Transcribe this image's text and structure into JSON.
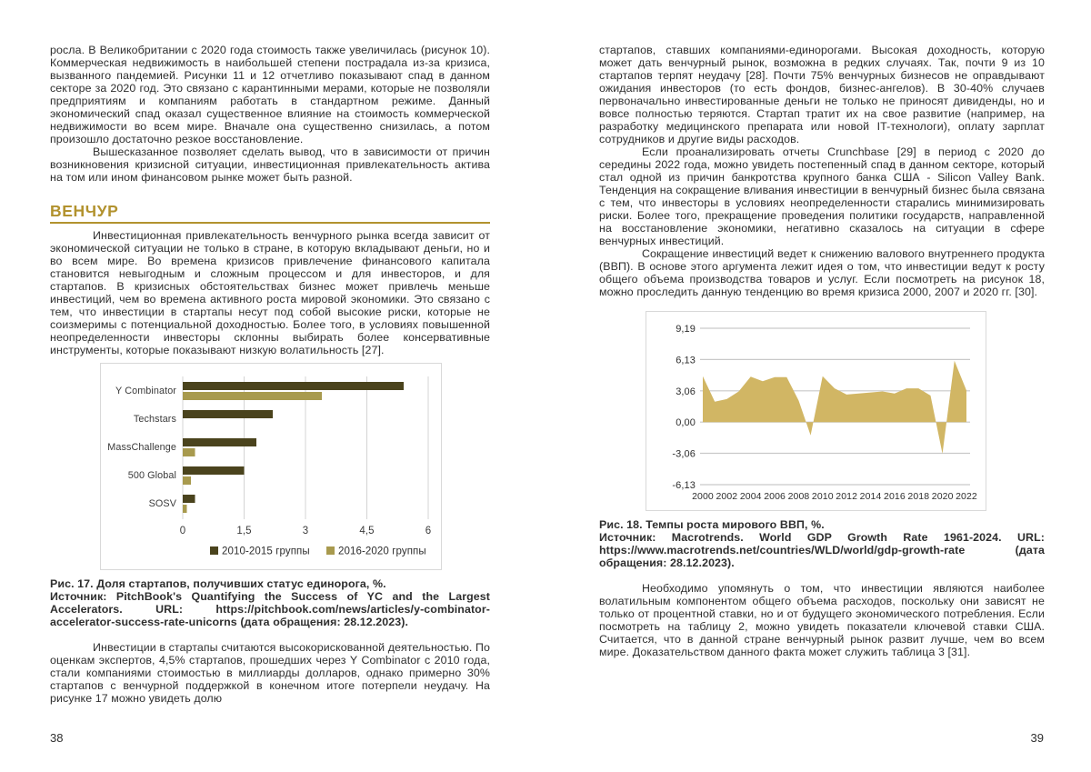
{
  "colors": {
    "heading_gold": "#b2922e",
    "bar_dark": "#4a431d",
    "bar_light": "#a89a4e",
    "area_fill": "#d1b664",
    "gridline": "#d4d4d4",
    "chart_border": "#d9d9d9",
    "body_text": "#2e2e2e"
  },
  "left_page": {
    "page_number": "38",
    "p1": "росла. В Великобритании с 2020 года стоимость также увеличилась (рисунок 10). Коммерческая недвижимость в наибольшей степени пострадала из-за кризиса, вызванного пандемией. Рисунки 11 и 12 отчетливо показывают спад в данном секторе за 2020 год. Это связано с карантинными мерами, которые не позволяли предприятиям и компаниям работать в стандартном режиме. Данный экономический спад оказал существенное влияние на стоимость коммерческой недвижимости во всем мире. Вначале она существенно снизилась, а потом произошло достаточно резкое восстановление.",
    "p2": "Вышесказанное позволяет сделать вывод, что в зависимости от причин возникновения кризисной ситуации, инвестиционная привлекательность актива на том или ином финансовом рынке может быть разной.",
    "section_heading": "ВЕНЧУР",
    "p3": "Инвестиционная привлекательность венчурного рынка всегда зависит от экономической ситуации не только в стране, в которую вкладывают деньги, но и во всем мире. Во времена кризисов привлечение финансового капитала становится невыгодным и сложным процессом и для инвесторов, и для стартапов. В кризисных обстоятельствах бизнес может привлечь меньше инвестиций, чем во времена активного роста мировой экономики. Это связано с тем, что инвестиции в стартапы несут под собой высокие риски, которые не соизмеримы с потенциальной доходностью. Более того, в условиях повышенной неопределенности инвесторы склонны выбирать более консервативные инструменты, которые показывают низкую волатильность [27].",
    "fig_caption_title": "Рис. 17. Доля стартапов, получивших статус единорога, %.",
    "fig_caption_source": "Источник: PitchBook's Quantifying the Success of YC and the Largest Accelerators. URL: https://pitchbook.com/news/articles/y-combinator-accelerator-success-rate-unicorns (дата обращения: 28.12.2023).",
    "p4": "Инвестиции в стартапы считаются высокорискованной деятельностью. По оценкам экспертов, 4,5% стартапов, прошедших через Y Combinator с 2010 года, стали компаниями стоимостью в миллиарды долларов, однако примерно 30% стартапов с венчурной поддержкой в конечном итоге потерпели неудачу. На рисунке 17 можно увидеть долю"
  },
  "right_page": {
    "page_number": "39",
    "p1": "стартапов, ставших компаниями-единорогами. Высокая доходность, которую может дать венчурный рынок, возможна в редких случаях. Так, почти 9 из 10 стартапов терпят неудачу [28]. Почти 75% венчурных бизнесов не оправдывают ожидания инвесторов (то есть фондов, бизнес-ангелов). В 30-40% случаев первоначально инвестированные деньги не только не приносят дивиденды, но и вовсе полностью теряются. Стартап тратит их на свое развитие (например, на разработку медицинского препарата или новой IT-технологи), оплату зарплат сотрудников и другие виды расходов.",
    "p2": "Если проанализировать отчеты Crunchbase [29] в период с 2020 до середины 2022 года, можно увидеть постепенный спад в данном секторе, который стал одной из причин банкротства крупного банка США - Silicon Valley Bank. Тенденция на сокращение вливания инвестиции в венчурный бизнес была связана с тем, что инвесторы в условиях неопределенности старались минимизировать риски. Более того, прекращение проведения политики государств, направленной на восстановление экономики, негативно сказалось на ситуации в сфере венчурных инвестиций.",
    "p3": "Сокращение инвестиций ведет к снижению валового внутреннего продукта (ВВП). В основе этого аргумента лежит идея о том, что инвестиции ведут к росту общего объема производства товаров и услуг. Если посмотреть на рисунок 18, можно проследить данную тенденцию во время кризиса 2000, 2007 и 2020 гг. [30].",
    "fig_caption_title": "Рис. 18. Темпы роста мирового ВВП, %.",
    "fig_caption_source": "Источник: Macrotrends. World GDP Growth Rate 1961-2024. URL: https://www.macrotrends.net/countries/WLD/world/gdp-growth-rate (дата обращения: 28.12.2023).",
    "p4": "Необходимо упомянуть о том, что инвестиции являются наиболее волатильным компонентом общего объема расходов, поскольку они зависят не только от процентной ставки, но и от будущего экономического потребления. Если посмотреть на таблицу 2, можно увидеть показатели ключевой ставки США. Считается, что в данной стране венчурный рынок развит лучше, чем во всем мире. Доказательством данного факта может служить таблица 3 [31]."
  },
  "chart_data": [
    {
      "type": "bar",
      "orientation": "horizontal",
      "title": "Рис. 17. Доля стартапов, получивших статус единорога, %.",
      "categories": [
        "Y Combinator",
        "Techstars",
        "MassChallenge",
        "500 Global",
        "SOSV"
      ],
      "series": [
        {
          "name": "2010-2015 группы",
          "color": "#4a431d",
          "values": [
            5.4,
            2.2,
            1.8,
            1.5,
            0.3
          ]
        },
        {
          "name": "2016-2020 группы",
          "color": "#a89a4e",
          "values": [
            3.4,
            0,
            0.3,
            0.2,
            0.1
          ]
        }
      ],
      "xlim": [
        0,
        6
      ],
      "x_tick_values": [
        0,
        1.5,
        3,
        4.5,
        6
      ],
      "x_tick_labels": [
        "0",
        "1,5",
        "3",
        "4,5",
        "6"
      ],
      "grid": true,
      "legend_position": "bottom"
    },
    {
      "type": "area",
      "title": "Рис. 18. Темпы роста мирового ВВП, %.",
      "x": [
        2000,
        2001,
        2002,
        2003,
        2004,
        2005,
        2006,
        2007,
        2008,
        2009,
        2010,
        2011,
        2012,
        2013,
        2014,
        2015,
        2016,
        2017,
        2018,
        2019,
        2020,
        2021,
        2022
      ],
      "values": [
        4.5,
        2.0,
        2.25,
        3.0,
        4.45,
        4.0,
        4.4,
        4.4,
        2.1,
        -1.3,
        4.5,
        3.3,
        2.7,
        2.8,
        2.9,
        3.0,
        2.8,
        3.3,
        3.3,
        2.6,
        -3.1,
        6.0,
        3.1
      ],
      "ylim": [
        -6.13,
        9.19
      ],
      "y_tick_values": [
        9.19,
        6.13,
        3.06,
        0,
        -3.06,
        -6.13
      ],
      "y_tick_labels": [
        "9,19",
        "6,13",
        "3,06",
        "0,00",
        "-3,06",
        "-6,13"
      ],
      "x_tick_values": [
        2000,
        2002,
        2004,
        2006,
        2008,
        2010,
        2012,
        2014,
        2016,
        2018,
        2020,
        2022
      ],
      "fill": "#d1b664",
      "grid": true
    }
  ]
}
